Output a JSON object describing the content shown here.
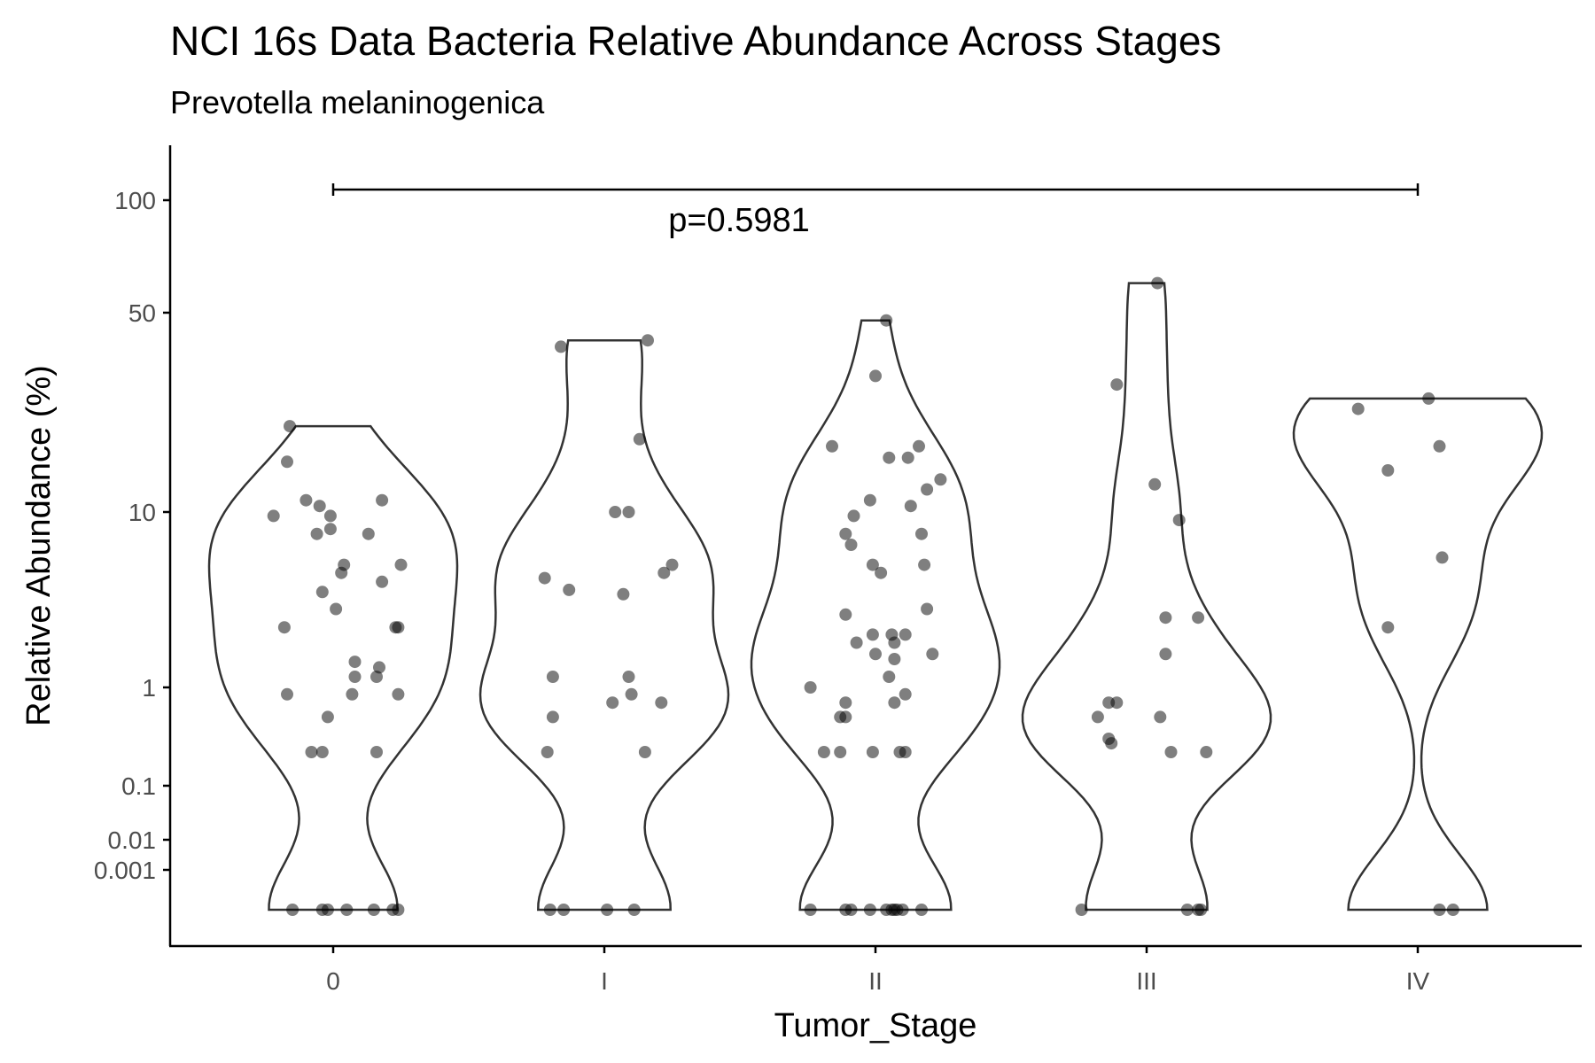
{
  "chart_data": {
    "type": "violin",
    "title": "NCI 16s Data Bacteria Relative Abundance Across Stages",
    "subtitle": "Prevotella melaninogenica",
    "xlabel": "Tumor_Stage",
    "ylabel": "Relative Abundance (%)",
    "y_scale": "pseudo-log",
    "y_ticks": [
      "0.001",
      "0.01",
      "0.1",
      "1",
      "10",
      "50",
      "100"
    ],
    "categories": [
      "0",
      "I",
      "II",
      "III",
      "IV"
    ],
    "annotation": {
      "label": "p=0.5981",
      "from": "0",
      "to": "IV"
    },
    "point_color": "#000000",
    "point_opacity": 0.5,
    "groups": [
      {
        "name": "0",
        "max": 20,
        "points": [
          {
            "o": -0.16,
            "y": 20
          },
          {
            "o": -0.17,
            "y": 15
          },
          {
            "o": 0.18,
            "y": 11
          },
          {
            "o": -0.1,
            "y": 11
          },
          {
            "o": -0.05,
            "y": 10.5
          },
          {
            "o": -0.22,
            "y": 9.5
          },
          {
            "o": -0.01,
            "y": 9.5
          },
          {
            "o": 0.13,
            "y": 7.5
          },
          {
            "o": -0.06,
            "y": 7.5
          },
          {
            "o": -0.01,
            "y": 8
          },
          {
            "o": 0.04,
            "y": 5
          },
          {
            "o": 0.03,
            "y": 4.5
          },
          {
            "o": 0.25,
            "y": 5
          },
          {
            "o": 0.18,
            "y": 4
          },
          {
            "o": -0.04,
            "y": 3.5
          },
          {
            "o": 0.01,
            "y": 2.8
          },
          {
            "o": -0.18,
            "y": 2.2
          },
          {
            "o": 0.23,
            "y": 2.2
          },
          {
            "o": 0.24,
            "y": 2.2
          },
          {
            "o": 0.08,
            "y": 1.4
          },
          {
            "o": 0.17,
            "y": 1.3
          },
          {
            "o": 0.08,
            "y": 1.15
          },
          {
            "o": 0.16,
            "y": 1.15
          },
          {
            "o": -0.17,
            "y": 0.85
          },
          {
            "o": 0.07,
            "y": 0.85
          },
          {
            "o": 0.24,
            "y": 0.85
          },
          {
            "o": -0.02,
            "y": 0.5
          },
          {
            "o": -0.08,
            "y": 0.22
          },
          {
            "o": -0.04,
            "y": 0.22
          },
          {
            "o": 0.16,
            "y": 0.22
          },
          {
            "o": -0.15,
            "y": 0
          },
          {
            "o": -0.04,
            "y": 0
          },
          {
            "o": -0.02,
            "y": 0
          },
          {
            "o": 0.05,
            "y": 0
          },
          {
            "o": 0.15,
            "y": 0
          },
          {
            "o": 0.22,
            "y": 0
          },
          {
            "o": 0.24,
            "y": 0
          }
        ]
      },
      {
        "name": "I",
        "max": 40,
        "points": [
          {
            "o": 0.16,
            "y": 40
          },
          {
            "o": -0.16,
            "y": 38
          },
          {
            "o": 0.13,
            "y": 18
          },
          {
            "o": 0.04,
            "y": 10
          },
          {
            "o": 0.09,
            "y": 10
          },
          {
            "o": 0.25,
            "y": 5
          },
          {
            "o": 0.22,
            "y": 4.5
          },
          {
            "o": -0.22,
            "y": 4.2
          },
          {
            "o": -0.13,
            "y": 3.6
          },
          {
            "o": 0.07,
            "y": 3.4
          },
          {
            "o": -0.19,
            "y": 1.15
          },
          {
            "o": 0.09,
            "y": 1.15
          },
          {
            "o": 0.1,
            "y": 0.85
          },
          {
            "o": 0.03,
            "y": 0.7
          },
          {
            "o": 0.21,
            "y": 0.7
          },
          {
            "o": -0.19,
            "y": 0.5
          },
          {
            "o": -0.21,
            "y": 0.22
          },
          {
            "o": 0.15,
            "y": 0.22
          },
          {
            "o": -0.2,
            "y": 0
          },
          {
            "o": -0.15,
            "y": 0
          },
          {
            "o": 0.01,
            "y": 0
          },
          {
            "o": 0.11,
            "y": 0
          }
        ]
      },
      {
        "name": "II",
        "max": 47,
        "points": [
          {
            "o": 0.04,
            "y": 47
          },
          {
            "o": 0.0,
            "y": 30
          },
          {
            "o": -0.16,
            "y": 17
          },
          {
            "o": 0.16,
            "y": 17
          },
          {
            "o": 0.05,
            "y": 15.5
          },
          {
            "o": 0.12,
            "y": 15.5
          },
          {
            "o": 0.24,
            "y": 13
          },
          {
            "o": 0.19,
            "y": 12
          },
          {
            "o": -0.02,
            "y": 11
          },
          {
            "o": 0.13,
            "y": 10.5
          },
          {
            "o": -0.08,
            "y": 9.5
          },
          {
            "o": -0.11,
            "y": 7.5
          },
          {
            "o": 0.17,
            "y": 7.5
          },
          {
            "o": -0.09,
            "y": 6.5
          },
          {
            "o": -0.01,
            "y": 5
          },
          {
            "o": 0.02,
            "y": 4.5
          },
          {
            "o": 0.18,
            "y": 5
          },
          {
            "o": 0.19,
            "y": 2.8
          },
          {
            "o": -0.11,
            "y": 2.6
          },
          {
            "o": -0.01,
            "y": 2
          },
          {
            "o": 0.06,
            "y": 2
          },
          {
            "o": 0.11,
            "y": 2
          },
          {
            "o": -0.07,
            "y": 1.8
          },
          {
            "o": 0.07,
            "y": 1.8
          },
          {
            "o": 0.0,
            "y": 1.55
          },
          {
            "o": 0.21,
            "y": 1.55
          },
          {
            "o": 0.07,
            "y": 1.45
          },
          {
            "o": 0.05,
            "y": 1.15
          },
          {
            "o": -0.24,
            "y": 1.0
          },
          {
            "o": 0.11,
            "y": 0.85
          },
          {
            "o": -0.11,
            "y": 0.7
          },
          {
            "o": 0.07,
            "y": 0.7
          },
          {
            "o": -0.13,
            "y": 0.5
          },
          {
            "o": -0.11,
            "y": 0.5
          },
          {
            "o": -0.19,
            "y": 0.22
          },
          {
            "o": -0.13,
            "y": 0.22
          },
          {
            "o": -0.01,
            "y": 0.22
          },
          {
            "o": 0.09,
            "y": 0.22
          },
          {
            "o": 0.11,
            "y": 0.22
          },
          {
            "o": -0.24,
            "y": 0
          },
          {
            "o": -0.11,
            "y": 0
          },
          {
            "o": -0.09,
            "y": 0
          },
          {
            "o": -0.02,
            "y": 0
          },
          {
            "o": 0.04,
            "y": 0
          },
          {
            "o": 0.06,
            "y": 0
          },
          {
            "o": 0.07,
            "y": 0
          },
          {
            "o": 0.08,
            "y": 0
          },
          {
            "o": 0.1,
            "y": 0
          },
          {
            "o": 0.17,
            "y": 0
          }
        ]
      },
      {
        "name": "III",
        "max": 60,
        "points": [
          {
            "o": 0.04,
            "y": 60
          },
          {
            "o": -0.11,
            "y": 28
          },
          {
            "o": 0.03,
            "y": 12.5
          },
          {
            "o": 0.12,
            "y": 9
          },
          {
            "o": 0.07,
            "y": 2.5
          },
          {
            "o": 0.19,
            "y": 2.5
          },
          {
            "o": 0.07,
            "y": 1.55
          },
          {
            "o": -0.14,
            "y": 0.7
          },
          {
            "o": -0.11,
            "y": 0.7
          },
          {
            "o": -0.18,
            "y": 0.5
          },
          {
            "o": 0.05,
            "y": 0.5
          },
          {
            "o": -0.13,
            "y": 0.27
          },
          {
            "o": -0.14,
            "y": 0.3
          },
          {
            "o": 0.09,
            "y": 0.22
          },
          {
            "o": 0.22,
            "y": 0.22
          },
          {
            "o": -0.24,
            "y": 0
          },
          {
            "o": 0.15,
            "y": 0
          },
          {
            "o": 0.19,
            "y": 0
          },
          {
            "o": 0.2,
            "y": 0
          }
        ]
      },
      {
        "name": "IV",
        "max": 25,
        "points": [
          {
            "o": 0.04,
            "y": 25
          },
          {
            "o": -0.22,
            "y": 23
          },
          {
            "o": 0.08,
            "y": 17
          },
          {
            "o": -0.11,
            "y": 14
          },
          {
            "o": 0.09,
            "y": 5.5
          },
          {
            "o": -0.11,
            "y": 2.2
          },
          {
            "o": 0.08,
            "y": 0
          },
          {
            "o": 0.13,
            "y": 0
          }
        ]
      }
    ]
  }
}
